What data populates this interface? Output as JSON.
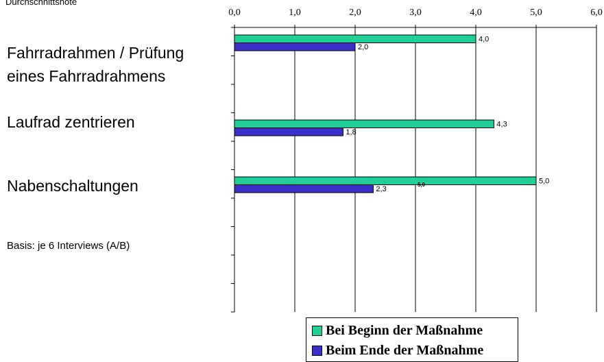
{
  "header_note": "Durchschnittsnote",
  "basis_note": "Basis: je 6 Interviews (A/B)",
  "chart_data": {
    "type": "bar",
    "orientation": "horizontal",
    "categories": [
      "Fahrradrahmen / Prüfung eines Fahrradrahmens",
      "Laufrad zentrieren",
      "Nabenschaltungen"
    ],
    "category_lines": [
      [
        "Fahrradrahmen / Prüfung",
        "eines Fahrradrahmens"
      ],
      [
        "Laufrad zentrieren"
      ],
      [
        "Nabenschaltungen"
      ]
    ],
    "series": [
      {
        "name": "Bei Beginn der Maßnahme",
        "values": [
          4.0,
          4.3,
          5.0
        ],
        "labels": [
          "4,0",
          "4,3",
          "5,0"
        ],
        "color": "#1fcf97"
      },
      {
        "name": "Beim Ende der Maßnahme",
        "values": [
          2.0,
          1.8,
          2.3
        ],
        "labels": [
          "2,0",
          "1,8",
          "2,3"
        ],
        "color": "#3b2fc9"
      }
    ],
    "xlim": [
      0,
      6
    ],
    "xticks": [
      0,
      1,
      2,
      3,
      4,
      5,
      6
    ],
    "xtick_labels": [
      "0,0",
      "1,0",
      "2,0",
      "3,0",
      "4,0",
      "5,0",
      "6,0"
    ],
    "axis_position": "top",
    "grid": true,
    "legend_position": "bottom-right",
    "annotations": [
      "5,0"
    ]
  }
}
